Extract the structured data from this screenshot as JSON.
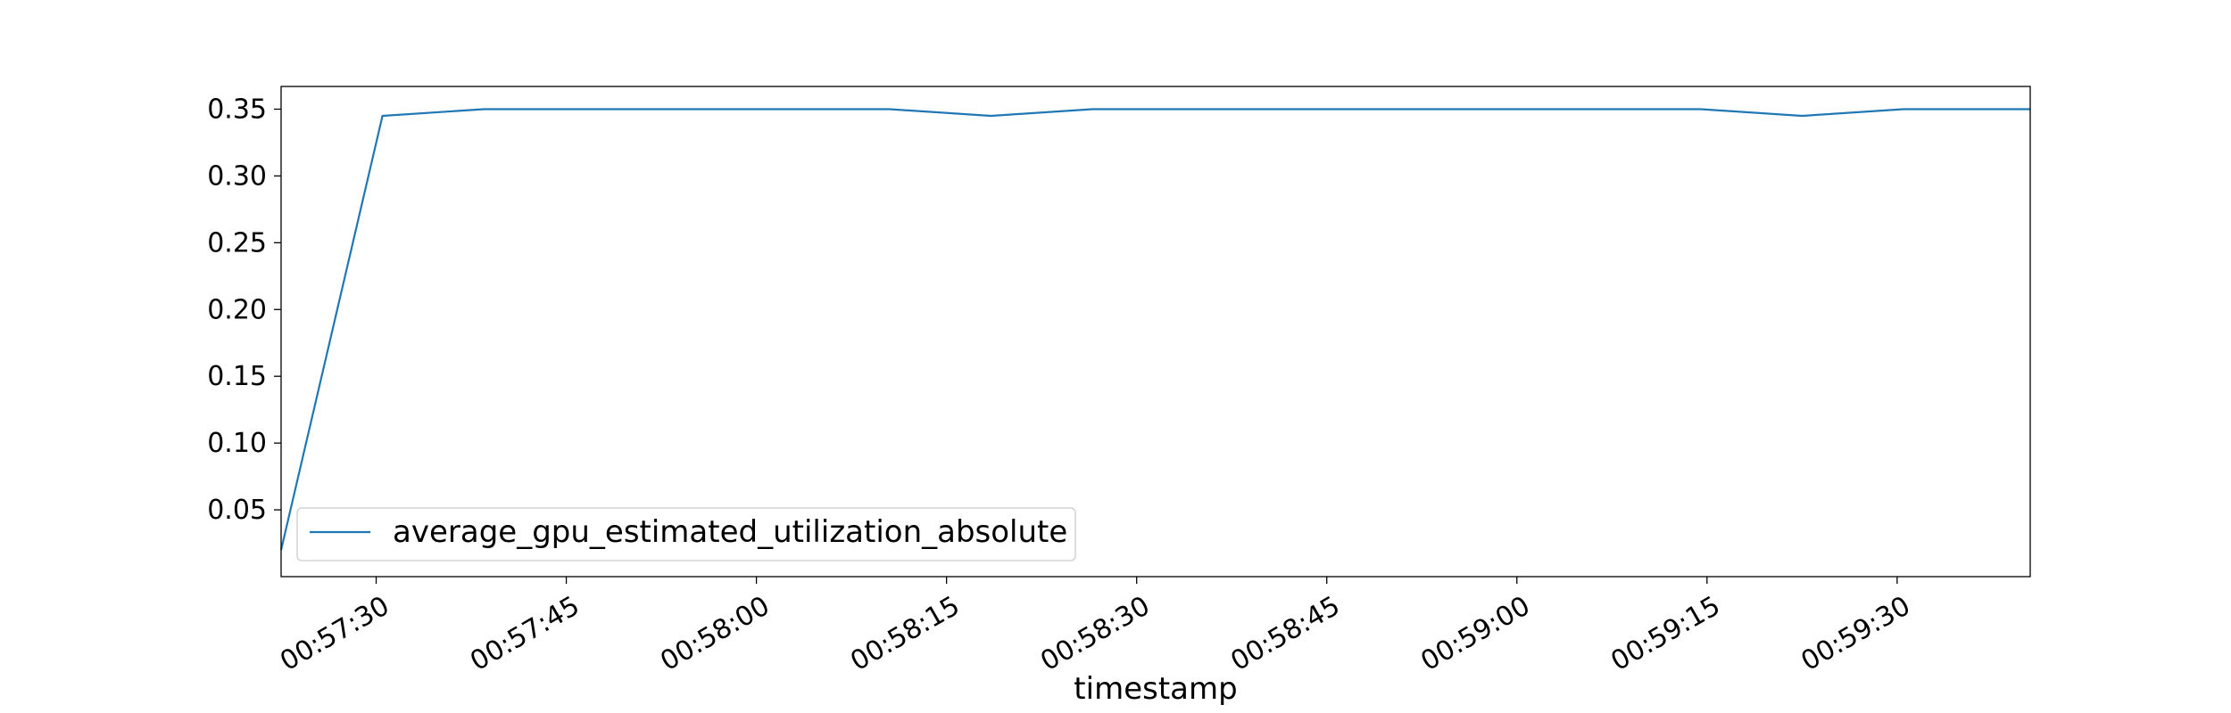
{
  "chart_data": {
    "type": "line",
    "title": "",
    "xlabel": "timestamp",
    "ylabel": "",
    "x_axis_kind": "time",
    "xlim": [
      "00:57:22.5",
      "00:59:40.5"
    ],
    "ylim": [
      0.0,
      0.367
    ],
    "x_tick_labels": [
      "00:57:30",
      "00:57:45",
      "00:58:00",
      "00:58:15",
      "00:58:30",
      "00:58:45",
      "00:59:00",
      "00:59:15",
      "00:59:30"
    ],
    "y_tick_labels": [
      "0.05",
      "0.10",
      "0.15",
      "0.20",
      "0.25",
      "0.30",
      "0.35"
    ],
    "y_ticks": [
      0.05,
      0.1,
      0.15,
      0.2,
      0.25,
      0.3,
      0.35
    ],
    "grid": false,
    "legend_position": "lower-left",
    "series": [
      {
        "name": "average_gpu_estimated_utilization_absolute",
        "color": "#1f77b4",
        "x": [
          "00:57:22.5",
          "00:57:30.5",
          "00:57:38.5",
          "00:57:46.5",
          "00:57:54.5",
          "00:58:02.5",
          "00:58:10.5",
          "00:58:18.5",
          "00:58:26.5",
          "00:58:34.5",
          "00:58:42.5",
          "00:58:50.5",
          "00:58:58.5",
          "00:59:06.5",
          "00:59:14.5",
          "00:59:22.5",
          "00:59:30.5",
          "00:59:38.5",
          "00:59:40.5"
        ],
        "y": [
          0.02,
          0.345,
          0.35,
          0.35,
          0.35,
          0.35,
          0.35,
          0.345,
          0.35,
          0.35,
          0.35,
          0.35,
          0.35,
          0.35,
          0.35,
          0.345,
          0.35,
          0.35,
          0.35
        ]
      }
    ]
  }
}
